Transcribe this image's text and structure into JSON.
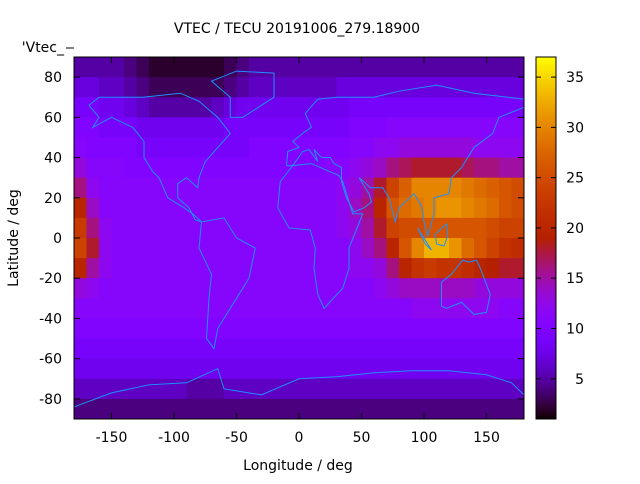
{
  "chart_data": {
    "type": "heatmap",
    "title": "VTEC / TECU 20191006_279.18900",
    "key_label": "'Vtec_",
    "xlabel": "Longitude / deg",
    "ylabel": "Latitude / deg",
    "xlim": [
      -180,
      180
    ],
    "ylim": [
      -90,
      90
    ],
    "cbrange": [
      1,
      37
    ],
    "xticks": [
      -150,
      -100,
      -50,
      0,
      50,
      100,
      150
    ],
    "yticks": [
      80,
      60,
      40,
      20,
      0,
      -20,
      -40,
      -60,
      -80
    ],
    "cbticks": [
      5,
      10,
      15,
      20,
      25,
      30,
      35
    ],
    "grid_lon_centers": [
      -175,
      -165,
      -155,
      -145,
      -135,
      -125,
      -115,
      -105,
      -95,
      -85,
      -75,
      -65,
      -55,
      -45,
      -35,
      -25,
      -15,
      -5,
      5,
      15,
      25,
      35,
      45,
      55,
      65,
      75,
      85,
      95,
      105,
      115,
      125,
      135,
      145,
      155,
      165,
      175
    ],
    "grid_lat_centers": [
      85,
      75,
      65,
      55,
      45,
      35,
      25,
      15,
      5,
      -5,
      -15,
      -25,
      -35,
      -45,
      -55,
      -65,
      -75,
      -85
    ],
    "values": [
      [
        5,
        5,
        5,
        5,
        4,
        3,
        2,
        2,
        2,
        2,
        2,
        2,
        3,
        4,
        5,
        5,
        5,
        5,
        5,
        5,
        5,
        5,
        5,
        5,
        5,
        5,
        5,
        5,
        5,
        5,
        5,
        5,
        5,
        5,
        5,
        5
      ],
      [
        7,
        7,
        6,
        6,
        5,
        4,
        3,
        3,
        3,
        3,
        3,
        3,
        4,
        5,
        6,
        6,
        6,
        6,
        6,
        6,
        6,
        7,
        7,
        7,
        7,
        7,
        7,
        7,
        7,
        7,
        7,
        7,
        7,
        7,
        7,
        7
      ],
      [
        9,
        9,
        8,
        8,
        7,
        6,
        5,
        5,
        5,
        5,
        5,
        6,
        7,
        8,
        8,
        8,
        8,
        8,
        8,
        8,
        8,
        8,
        9,
        9,
        9,
        9,
        9,
        9,
        9,
        9,
        9,
        9,
        9,
        9,
        9,
        9
      ],
      [
        10,
        10,
        9,
        9,
        9,
        8,
        8,
        8,
        8,
        8,
        8,
        8,
        9,
        9,
        9,
        9,
        9,
        9,
        9,
        9,
        9,
        9,
        10,
        10,
        10,
        11,
        11,
        11,
        11,
        11,
        11,
        11,
        11,
        11,
        11,
        11
      ],
      [
        11,
        10,
        10,
        10,
        10,
        9,
        9,
        9,
        9,
        9,
        9,
        9,
        9,
        9,
        10,
        10,
        10,
        10,
        10,
        10,
        10,
        10,
        11,
        11,
        12,
        12,
        13,
        13,
        13,
        13,
        13,
        13,
        12,
        12,
        12,
        12
      ],
      [
        13,
        11,
        11,
        11,
        10,
        10,
        10,
        10,
        10,
        10,
        10,
        10,
        10,
        10,
        10,
        10,
        10,
        10,
        10,
        10,
        11,
        11,
        12,
        13,
        14,
        16,
        17,
        18,
        18,
        18,
        18,
        17,
        16,
        16,
        15,
        15
      ],
      [
        16,
        12,
        11,
        11,
        11,
        11,
        11,
        11,
        11,
        11,
        11,
        11,
        11,
        11,
        11,
        11,
        11,
        11,
        11,
        11,
        11,
        12,
        13,
        15,
        18,
        24,
        27,
        30,
        30,
        30,
        30,
        29,
        28,
        27,
        26,
        25
      ],
      [
        20,
        14,
        11,
        11,
        11,
        11,
        11,
        11,
        11,
        11,
        11,
        11,
        11,
        11,
        11,
        11,
        11,
        11,
        11,
        11,
        11,
        12,
        14,
        16,
        20,
        26,
        28,
        29,
        30,
        31,
        31,
        30,
        29,
        28,
        26,
        25
      ],
      [
        23,
        16,
        12,
        11,
        11,
        11,
        11,
        11,
        11,
        11,
        11,
        11,
        11,
        11,
        11,
        11,
        11,
        11,
        11,
        11,
        11,
        12,
        13,
        15,
        18,
        24,
        25,
        25,
        26,
        26,
        26,
        26,
        26,
        25,
        24,
        24
      ],
      [
        24,
        18,
        12,
        11,
        11,
        11,
        11,
        11,
        11,
        11,
        11,
        11,
        11,
        11,
        11,
        11,
        11,
        11,
        11,
        11,
        11,
        11,
        12,
        14,
        16,
        20,
        26,
        30,
        33,
        33,
        31,
        28,
        26,
        24,
        22,
        21
      ],
      [
        20,
        15,
        12,
        11,
        11,
        11,
        11,
        11,
        11,
        11,
        11,
        11,
        11,
        11,
        11,
        11,
        11,
        11,
        11,
        11,
        11,
        11,
        12,
        12,
        13,
        16,
        20,
        22,
        23,
        22,
        22,
        21,
        20,
        19,
        18,
        18
      ],
      [
        13,
        12,
        11,
        11,
        11,
        11,
        11,
        11,
        11,
        11,
        11,
        11,
        11,
        11,
        11,
        11,
        11,
        11,
        11,
        11,
        11,
        11,
        11,
        11,
        12,
        13,
        14,
        14,
        14,
        14,
        14,
        14,
        13,
        13,
        13,
        13
      ],
      [
        11,
        11,
        11,
        11,
        11,
        11,
        11,
        11,
        11,
        11,
        11,
        11,
        11,
        11,
        11,
        11,
        11,
        11,
        11,
        11,
        11,
        11,
        11,
        11,
        11,
        11,
        11,
        12,
        12,
        12,
        12,
        12,
        12,
        12,
        11,
        11
      ],
      [
        10,
        10,
        10,
        10,
        10,
        10,
        10,
        10,
        10,
        10,
        10,
        10,
        10,
        10,
        10,
        10,
        10,
        10,
        10,
        10,
        10,
        10,
        10,
        10,
        10,
        10,
        10,
        10,
        10,
        10,
        10,
        10,
        10,
        10,
        10,
        10
      ],
      [
        9,
        9,
        9,
        9,
        9,
        9,
        9,
        9,
        9,
        9,
        9,
        9,
        9,
        9,
        9,
        9,
        9,
        9,
        9,
        9,
        9,
        9,
        9,
        9,
        9,
        9,
        9,
        9,
        9,
        9,
        9,
        9,
        9,
        9,
        9,
        9
      ],
      [
        8,
        8,
        8,
        8,
        8,
        8,
        8,
        8,
        8,
        8,
        8,
        8,
        8,
        8,
        8,
        8,
        8,
        8,
        8,
        8,
        8,
        8,
        8,
        8,
        8,
        8,
        8,
        8,
        8,
        8,
        8,
        8,
        8,
        8,
        8,
        8
      ],
      [
        6,
        6,
        6,
        6,
        6,
        6,
        6,
        6,
        6,
        5,
        5,
        5,
        6,
        6,
        6,
        6,
        6,
        6,
        6,
        6,
        6,
        6,
        6,
        6,
        6,
        6,
        6,
        6,
        6,
        6,
        6,
        6,
        6,
        6,
        6,
        6
      ],
      [
        4,
        4,
        4,
        4,
        4,
        4,
        4,
        4,
        4,
        4,
        4,
        4,
        4,
        4,
        4,
        4,
        4,
        4,
        4,
        4,
        4,
        4,
        4,
        4,
        4,
        4,
        4,
        4,
        4,
        4,
        4,
        4,
        4,
        4,
        4,
        4
      ]
    ],
    "coastline_color": "#1e90ff"
  }
}
